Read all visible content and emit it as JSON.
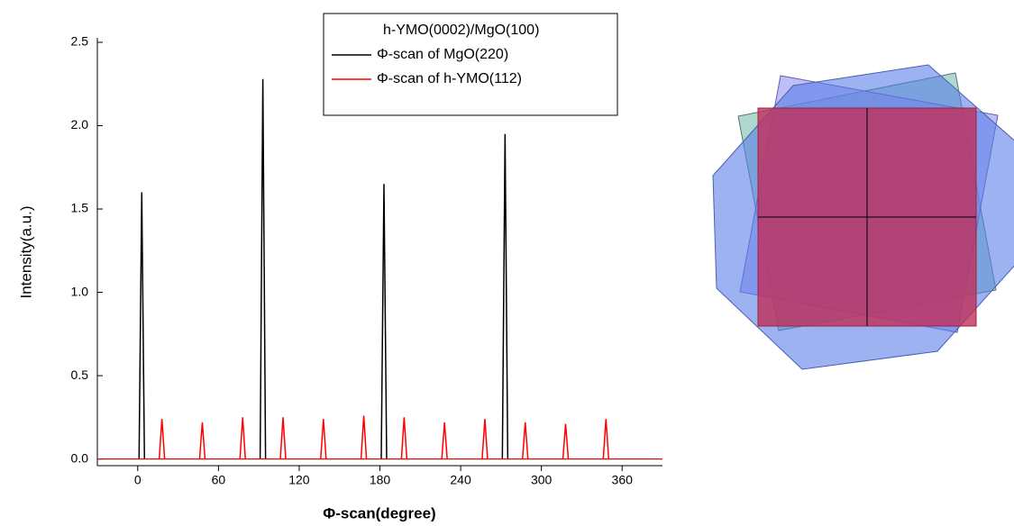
{
  "chart_data": {
    "type": "stem",
    "xlabel": "Φ-scan(degree)",
    "ylabel": "Intensity(a.u.)",
    "legend_title": "h-YMO(0002)/MgO(100)",
    "xlim": [
      -30,
      390
    ],
    "xticks": [
      0,
      60,
      120,
      180,
      240,
      300,
      360
    ],
    "ylim": [
      -0.04,
      2.5
    ],
    "yticks": [
      {
        "value": 0,
        "label": "0.0"
      },
      0.5,
      {
        "value": 1,
        "label": "1.0"
      },
      1.5,
      {
        "value": 2,
        "label": "2.0"
      },
      2.5
    ],
    "series": [
      {
        "name": "Φ-scan of MgO(220)",
        "color": "#000000",
        "x": [
          3,
          93,
          183,
          273
        ],
        "values": [
          1.6,
          2.28,
          1.65,
          1.95
        ]
      },
      {
        "name": "Φ-scan of h-YMO(112)",
        "color": "#ff0000",
        "x": [
          18,
          48,
          78,
          108,
          138,
          168,
          198,
          228,
          258,
          288,
          318,
          348
        ],
        "values": [
          0.24,
          0.22,
          0.25,
          0.25,
          0.24,
          0.26,
          0.25,
          0.22,
          0.24,
          0.22,
          0.21,
          0.24
        ]
      }
    ]
  }
}
